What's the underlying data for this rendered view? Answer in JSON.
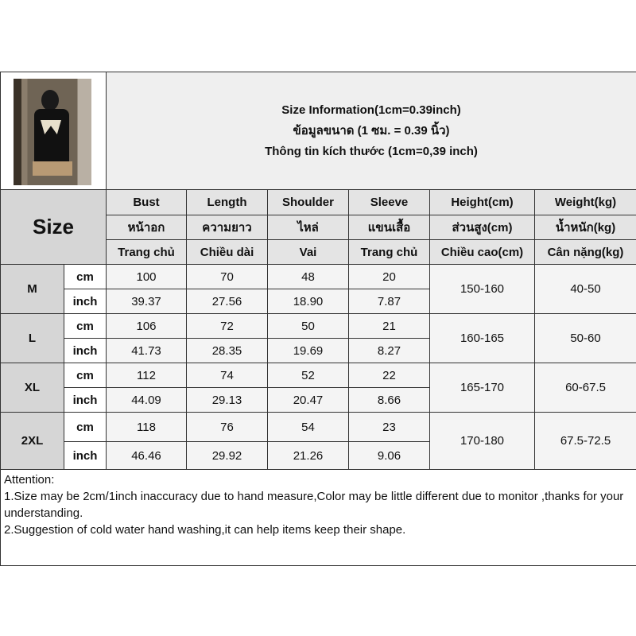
{
  "title_lines": [
    "Size Information(1cm=0.39inch)",
    "ข้อมูลขนาด (1 ซม. = 0.39 นิ้ว)",
    "Thông tin kích thước (1cm=0,39 inch)"
  ],
  "size_label": "Size",
  "columns": [
    {
      "en": "Bust",
      "th": "หน้าอก",
      "vi": "Trang chủ"
    },
    {
      "en": "Length",
      "th": "ความยาว",
      "vi": "Chiều dài"
    },
    {
      "en": "Shoulder",
      "th": "ไหล่",
      "vi": "Vai"
    },
    {
      "en": "Sleeve",
      "th": "แขนเสื้อ",
      "vi": "Trang chủ"
    },
    {
      "en": "Height(cm)",
      "th": "ส่วนสูง(cm)",
      "vi": "Chiều cao(cm)"
    },
    {
      "en": "Weight(kg)",
      "th": "น้ำหนัก(kg)",
      "vi": "Cân nặng(kg)"
    }
  ],
  "units": {
    "cm": "cm",
    "inch": "inch"
  },
  "rows": [
    {
      "size": "M",
      "cm": [
        "100",
        "70",
        "48",
        "20"
      ],
      "inch": [
        "39.37",
        "27.56",
        "18.90",
        "7.87"
      ],
      "height": "150-160",
      "weight": "40-50"
    },
    {
      "size": "L",
      "cm": [
        "106",
        "72",
        "50",
        "21"
      ],
      "inch": [
        "41.73",
        "28.35",
        "19.69",
        "8.27"
      ],
      "height": "160-165",
      "weight": "50-60"
    },
    {
      "size": "XL",
      "cm": [
        "112",
        "74",
        "52",
        "22"
      ],
      "inch": [
        "44.09",
        "29.13",
        "20.47",
        "8.66"
      ],
      "height": "165-170",
      "weight": "60-67.5"
    },
    {
      "size": "2XL",
      "cm": [
        "118",
        "76",
        "54",
        "23"
      ],
      "inch": [
        "46.46",
        "29.92",
        "21.26",
        "9.06"
      ],
      "height": "170-180",
      "weight": "67.5-72.5"
    }
  ],
  "attention": {
    "heading": "Attention:",
    "line1": "1.Size may be 2cm/1inch inaccuracy due to hand measure,Color may be little different due to monitor ,thanks for your understanding.",
    "line2": "2.Suggestion of cold water hand washing,it can help items keep their shape."
  }
}
